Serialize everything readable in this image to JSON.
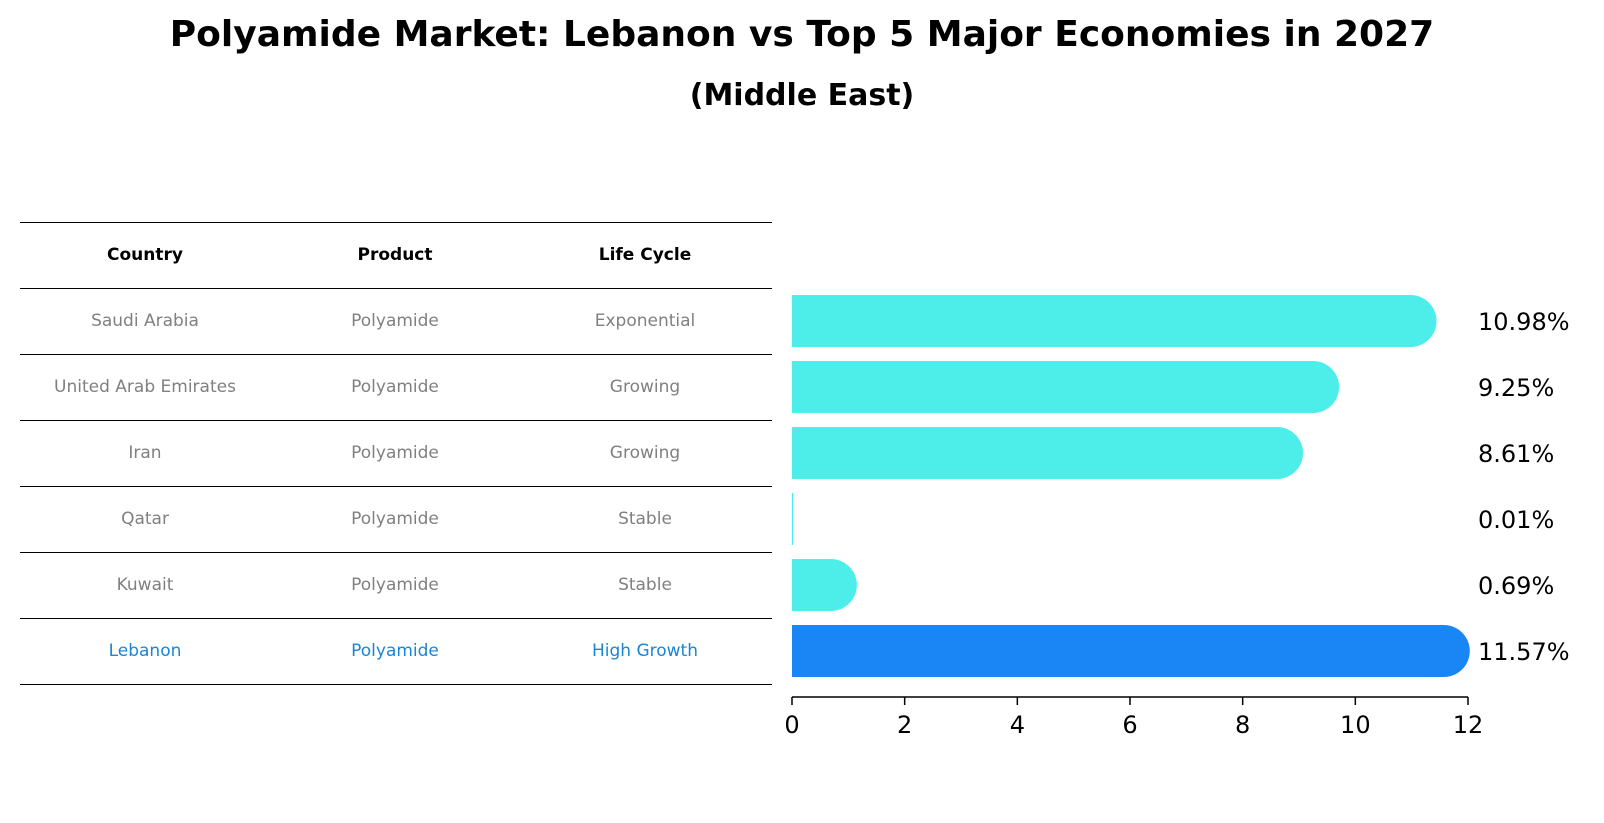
{
  "title": "Polyamide Market: Lebanon vs Top 5 Major Economies in 2027",
  "subtitle": "(Middle East)",
  "table": {
    "headers": [
      "Country",
      "Product",
      "Life Cycle"
    ],
    "rows": [
      [
        "Saudi Arabia",
        "Polyamide",
        "Exponential"
      ],
      [
        "United Arab Emirates",
        "Polyamide",
        "Growing"
      ],
      [
        "Iran",
        "Polyamide",
        "Growing"
      ],
      [
        "Qatar",
        "Polyamide",
        "Stable"
      ],
      [
        "Kuwait",
        "Polyamide",
        "Stable"
      ],
      [
        "Lebanon",
        "Polyamide",
        "High Growth"
      ]
    ],
    "highlight_row": 5
  },
  "colors": {
    "bar": "#4deeea",
    "highlight_bar": "#1a85f5",
    "highlight_text": "#1a85d6",
    "muted_text": "#808080"
  },
  "chart_data": {
    "type": "bar",
    "orientation": "horizontal",
    "categories": [
      "Saudi Arabia",
      "United Arab Emirates",
      "Iran",
      "Qatar",
      "Kuwait",
      "Lebanon"
    ],
    "values": [
      10.98,
      9.25,
      8.61,
      0.01,
      0.69,
      11.57
    ],
    "value_labels": [
      "10.98%",
      "9.25%",
      "8.61%",
      "0.01%",
      "0.69%",
      "11.57%"
    ],
    "highlight_index": 5,
    "xlim": [
      0,
      12
    ],
    "xticks": [
      0,
      2,
      4,
      6,
      8,
      10,
      12
    ],
    "grid": false
  }
}
